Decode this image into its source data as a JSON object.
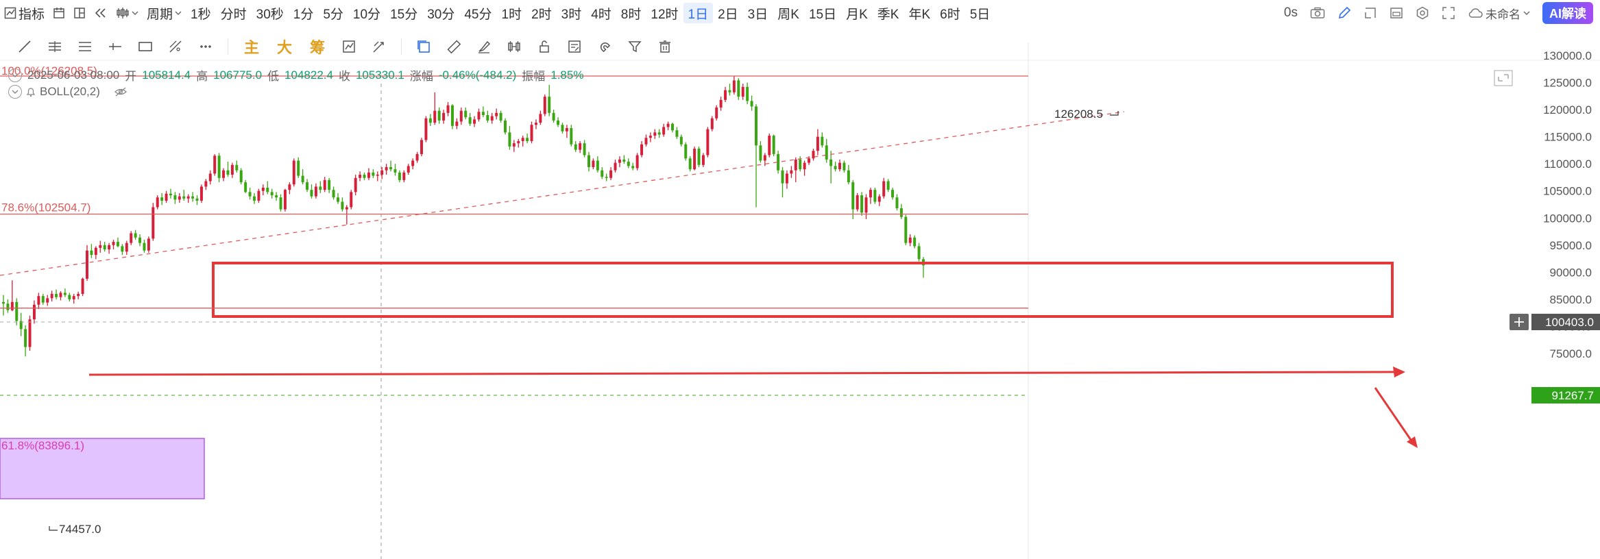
{
  "toolbar": {
    "indicator_label": "指标",
    "period_label": "周期",
    "periods": [
      "1秒",
      "分时",
      "30秒",
      "1分",
      "5分",
      "10分",
      "15分",
      "30分",
      "45分",
      "1时",
      "2时",
      "3时",
      "4时",
      "8时",
      "12时",
      "1日",
      "2日",
      "3日",
      "周K",
      "15日",
      "月K",
      "季K",
      "年K",
      "6时",
      "5日"
    ],
    "active_period": "1日",
    "countdown": "0s",
    "layout_name": "未命名",
    "ai_button": "AI解读"
  },
  "drawbar": {
    "main_label": "主",
    "big_label": "大",
    "chip_label": "筹"
  },
  "ohlc": {
    "date": "2025-06-03 08:00",
    "open_label": "开",
    "open": "105814.4",
    "high_label": "高",
    "high": "106775.0",
    "low_label": "低",
    "low": "104822.4",
    "close_label": "收",
    "close": "105330.1",
    "change_label": "涨幅",
    "change": "-0.46%(-484.2)",
    "amp_label": "振幅",
    "amp": "1.85%"
  },
  "indicator": {
    "name": "BOLL(20,2)"
  },
  "chart_data": {
    "type": "candlestick",
    "y_ticks": [
      "130000.0",
      "125000.0",
      "120000.0",
      "115000.0",
      "110000.0",
      "105000.0",
      "100000.0",
      "95000.0",
      "90000.0",
      "85000.0",
      "80000.0",
      "75000.0"
    ],
    "ylim": [
      73500,
      131500
    ],
    "crosshair_price": "100403.0",
    "last_price": "91267.7",
    "fib_levels": [
      {
        "label": "100.0%(126208.5)",
        "price": 126208.5
      },
      {
        "label": "78.6%(102504.7)",
        "price": 102504.7
      },
      {
        "label": "61.8%(83896.1)",
        "price": 83896.1
      }
    ],
    "support_line_price": 84000,
    "annotations": {
      "high_label": "126208.5",
      "low_label": "74457.0"
    },
    "candles": [
      [
        84500,
        85800,
        82000,
        84200
      ],
      [
        84200,
        85000,
        82500,
        83000
      ],
      [
        83000,
        88500,
        82800,
        84500
      ],
      [
        84500,
        85200,
        80200,
        81000
      ],
      [
        81000,
        82500,
        78200,
        79500
      ],
      [
        79500,
        80200,
        74457,
        76200
      ],
      [
        76200,
        82000,
        75500,
        81300
      ],
      [
        81300,
        84800,
        80500,
        84000
      ],
      [
        84000,
        86200,
        83200,
        85600
      ],
      [
        85600,
        86000,
        84000,
        84400
      ],
      [
        84400,
        85800,
        83800,
        85200
      ],
      [
        85200,
        86600,
        84600,
        86000
      ],
      [
        86000,
        86800,
        85000,
        85400
      ],
      [
        85400,
        86500,
        84800,
        86200
      ],
      [
        86200,
        87000,
        85400,
        85800
      ],
      [
        85800,
        86200,
        84600,
        85000
      ],
      [
        85000,
        86000,
        84200,
        85600
      ],
      [
        85600,
        86400,
        85000,
        86000
      ],
      [
        86000,
        89000,
        85600,
        88800
      ],
      [
        88800,
        95000,
        88400,
        94000
      ],
      [
        94000,
        95200,
        92600,
        93200
      ],
      [
        93200,
        94800,
        92400,
        94500
      ],
      [
        94500,
        95800,
        93600,
        95000
      ],
      [
        95000,
        95600,
        93800,
        94200
      ],
      [
        94200,
        95400,
        93400,
        95000
      ],
      [
        95000,
        96000,
        94200,
        95600
      ],
      [
        95600,
        96400,
        94600,
        94800
      ],
      [
        94800,
        95200,
        93200,
        93800
      ],
      [
        93800,
        95800,
        93200,
        95400
      ],
      [
        95400,
        97600,
        95000,
        97200
      ],
      [
        97200,
        97800,
        96000,
        96400
      ],
      [
        96400,
        97000,
        94800,
        95400
      ],
      [
        95400,
        96000,
        93600,
        94000
      ],
      [
        94000,
        96600,
        93600,
        96200
      ],
      [
        96200,
        102800,
        95800,
        102000
      ],
      [
        102000,
        104200,
        101600,
        103800
      ],
      [
        103800,
        104600,
        102400,
        103200
      ],
      [
        103200,
        105000,
        102800,
        104500
      ],
      [
        104500,
        105400,
        103600,
        104200
      ],
      [
        104200,
        104800,
        102600,
        103400
      ],
      [
        103400,
        104600,
        102800,
        104000
      ],
      [
        104000,
        105200,
        103200,
        103600
      ],
      [
        103600,
        104400,
        102800,
        104000
      ],
      [
        104000,
        104800,
        103000,
        103600
      ],
      [
        103600,
        104200,
        102400,
        103200
      ],
      [
        103200,
        106200,
        102800,
        105800
      ],
      [
        105800,
        107200,
        105200,
        106800
      ],
      [
        106800,
        108800,
        106200,
        108200
      ],
      [
        108200,
        111800,
        107800,
        111500
      ],
      [
        111500,
        112000,
        106600,
        107400
      ],
      [
        107400,
        109200,
        106800,
        108800
      ],
      [
        108800,
        110400,
        107600,
        108000
      ],
      [
        108000,
        110200,
        107400,
        109800
      ],
      [
        109800,
        110600,
        108400,
        108800
      ],
      [
        108800,
        109200,
        106200,
        106600
      ],
      [
        106600,
        107000,
        104600,
        104800
      ],
      [
        104800,
        105600,
        103400,
        104000
      ],
      [
        104000,
        104600,
        102600,
        103200
      ],
      [
        103200,
        105400,
        102800,
        105000
      ],
      [
        105000,
        106200,
        104200,
        105600
      ],
      [
        105600,
        106800,
        104400,
        104800
      ],
      [
        104800,
        105400,
        103600,
        104200
      ],
      [
        104200,
        104800,
        103200,
        103800
      ],
      [
        103800,
        104400,
        101200,
        101600
      ],
      [
        101600,
        105400,
        101200,
        105200
      ],
      [
        105200,
        106600,
        104400,
        106200
      ],
      [
        106200,
        111000,
        105800,
        110600
      ],
      [
        110600,
        111200,
        107400,
        107800
      ],
      [
        107800,
        109000,
        106200,
        106600
      ],
      [
        106600,
        107200,
        104800,
        105200
      ],
      [
        105200,
        106200,
        103600,
        104000
      ],
      [
        104000,
        106400,
        103600,
        105800
      ],
      [
        105800,
        106800,
        104600,
        105200
      ],
      [
        105200,
        107600,
        104800,
        107000
      ],
      [
        107000,
        107400,
        104600,
        105200
      ],
      [
        105200,
        105800,
        103400,
        103800
      ],
      [
        103800,
        104600,
        102600,
        103000
      ],
      [
        103000,
        103800,
        101200,
        101600
      ],
      [
        101600,
        102400,
        98800,
        102000
      ],
      [
        102000,
        105200,
        101600,
        104800
      ],
      [
        104800,
        108000,
        104200,
        107400
      ],
      [
        107400,
        108600,
        106800,
        108000
      ],
      [
        108000,
        108400,
        107000,
        107400
      ],
      [
        107400,
        109200,
        107000,
        108400
      ],
      [
        108400,
        109000,
        107400,
        107800
      ],
      [
        107800,
        108600,
        106800,
        108000
      ],
      [
        108000,
        109400,
        107200,
        108800
      ],
      [
        108800,
        110000,
        108000,
        109400
      ],
      [
        109400,
        110600,
        108600,
        109000
      ],
      [
        109000,
        110000,
        107800,
        108400
      ],
      [
        108400,
        108800,
        106600,
        107000
      ],
      [
        107000,
        108800,
        106600,
        108400
      ],
      [
        108400,
        110000,
        108000,
        109600
      ],
      [
        109600,
        111000,
        109000,
        110600
      ],
      [
        110600,
        112200,
        110200,
        111800
      ],
      [
        111800,
        114800,
        111400,
        114400
      ],
      [
        114400,
        118800,
        114000,
        118400
      ],
      [
        118400,
        119200,
        117000,
        117600
      ],
      [
        117600,
        123200,
        117200,
        119800
      ],
      [
        119800,
        120400,
        117400,
        118000
      ],
      [
        118000,
        120000,
        117400,
        119400
      ],
      [
        119400,
        121400,
        118800,
        120800
      ],
      [
        120800,
        121000,
        116400,
        117000
      ],
      [
        117000,
        118400,
        116400,
        117800
      ],
      [
        117800,
        120400,
        117200,
        119800
      ],
      [
        119800,
        120400,
        118200,
        118600
      ],
      [
        118600,
        119400,
        117000,
        117400
      ],
      [
        117400,
        118800,
        116800,
        118200
      ],
      [
        118200,
        120200,
        117800,
        119600
      ],
      [
        119600,
        120600,
        118600,
        119000
      ],
      [
        119000,
        119800,
        117600,
        118000
      ],
      [
        118000,
        119400,
        117400,
        118800
      ],
      [
        118800,
        120200,
        118200,
        119400
      ],
      [
        119400,
        119800,
        117600,
        118000
      ],
      [
        118000,
        118400,
        115400,
        115800
      ],
      [
        115800,
        117000,
        112600,
        113200
      ],
      [
        113200,
        114400,
        112200,
        113800
      ],
      [
        113800,
        114600,
        113000,
        114200
      ],
      [
        114200,
        115200,
        113200,
        114800
      ],
      [
        114800,
        115600,
        113800,
        114200
      ],
      [
        114200,
        117800,
        113800,
        117200
      ],
      [
        117200,
        118200,
        116400,
        117600
      ],
      [
        117600,
        119800,
        117200,
        119200
      ],
      [
        119200,
        122800,
        118800,
        122400
      ],
      [
        122400,
        124600,
        118800,
        119400
      ],
      [
        119400,
        120000,
        117600,
        118000
      ],
      [
        118000,
        118600,
        116800,
        117200
      ],
      [
        117200,
        117600,
        115600,
        116000
      ],
      [
        116000,
        117200,
        114800,
        116600
      ],
      [
        116600,
        117200,
        113200,
        113600
      ],
      [
        113600,
        114200,
        112200,
        112600
      ],
      [
        112600,
        114200,
        112000,
        113800
      ],
      [
        113800,
        114400,
        111200,
        111600
      ],
      [
        111600,
        112200,
        108600,
        109400
      ],
      [
        109400,
        111000,
        109000,
        110600
      ],
      [
        110600,
        111400,
        108400,
        108800
      ],
      [
        108800,
        109400,
        107200,
        107600
      ],
      [
        107600,
        108200,
        106800,
        107400
      ],
      [
        107400,
        109400,
        107000,
        108800
      ],
      [
        108800,
        110800,
        108400,
        110200
      ],
      [
        110200,
        111400,
        109400,
        110800
      ],
      [
        110800,
        111600,
        110000,
        110400
      ],
      [
        110400,
        111000,
        109200,
        109600
      ],
      [
        109600,
        110200,
        108800,
        109200
      ],
      [
        109200,
        112000,
        108800,
        111600
      ],
      [
        111600,
        114200,
        111200,
        113600
      ],
      [
        113600,
        115400,
        113200,
        114800
      ],
      [
        114800,
        115800,
        114000,
        115200
      ],
      [
        115200,
        116400,
        114600,
        115800
      ],
      [
        115800,
        116400,
        114800,
        115400
      ],
      [
        115400,
        117400,
        115000,
        116800
      ],
      [
        116800,
        117800,
        116200,
        117400
      ],
      [
        117400,
        117600,
        115800,
        116200
      ],
      [
        116200,
        116800,
        114600,
        115000
      ],
      [
        115000,
        115400,
        113200,
        113600
      ],
      [
        113600,
        114000,
        110600,
        111000
      ],
      [
        111000,
        111400,
        108600,
        109000
      ],
      [
        109000,
        113200,
        108800,
        112800
      ],
      [
        112800,
        113200,
        109400,
        109800
      ],
      [
        109800,
        112000,
        109400,
        111600
      ],
      [
        111600,
        116800,
        111200,
        116400
      ],
      [
        116400,
        118800,
        116000,
        118400
      ],
      [
        118400,
        120800,
        118000,
        120400
      ],
      [
        120400,
        122400,
        119800,
        121800
      ],
      [
        121800,
        124200,
        121400,
        123600
      ],
      [
        123600,
        124800,
        122600,
        123200
      ],
      [
        123200,
        126208.5,
        122800,
        125400
      ],
      [
        125400,
        125800,
        121800,
        122400
      ],
      [
        122400,
        124800,
        121800,
        124200
      ],
      [
        124200,
        125000,
        121000,
        121600
      ],
      [
        121600,
        122600,
        119800,
        120600
      ],
      [
        120600,
        121000,
        102000,
        113400
      ],
      [
        113400,
        114200,
        110200,
        110600
      ],
      [
        110600,
        112000,
        109600,
        111600
      ],
      [
        111600,
        115600,
        111200,
        115200
      ],
      [
        115200,
        115400,
        111400,
        111800
      ],
      [
        111800,
        112400,
        108200,
        108800
      ],
      [
        108800,
        109400,
        103800,
        106400
      ],
      [
        106400,
        108800,
        105400,
        108200
      ],
      [
        108200,
        109600,
        107400,
        108800
      ],
      [
        108800,
        111200,
        106600,
        110800
      ],
      [
        110800,
        111400,
        108600,
        109000
      ],
      [
        109000,
        110600,
        107800,
        110200
      ],
      [
        110200,
        111400,
        109800,
        111000
      ],
      [
        111000,
        112800,
        110600,
        112400
      ],
      [
        112400,
        116400,
        111600,
        115000
      ],
      [
        115000,
        115800,
        113000,
        113400
      ],
      [
        113400,
        114600,
        110200,
        110800
      ],
      [
        110800,
        112400,
        106400,
        109600
      ],
      [
        109600,
        110400,
        108600,
        109000
      ],
      [
        109000,
        110800,
        108600,
        110200
      ],
      [
        110200,
        110600,
        108400,
        108800
      ],
      [
        108800,
        109800,
        106200,
        106600
      ],
      [
        106600,
        107000,
        99800,
        101600
      ],
      [
        101600,
        104600,
        101200,
        104200
      ],
      [
        104200,
        104800,
        100400,
        101000
      ],
      [
        101000,
        104400,
        99800,
        103800
      ],
      [
        103800,
        105600,
        102600,
        105200
      ],
      [
        105200,
        105600,
        102600,
        103000
      ],
      [
        103000,
        104400,
        102200,
        104000
      ],
      [
        104000,
        107400,
        103600,
        106800
      ],
      [
        106800,
        107200,
        104800,
        105200
      ],
      [
        105200,
        105600,
        103400,
        103800
      ],
      [
        103800,
        104400,
        101400,
        101800
      ],
      [
        101800,
        102600,
        99800,
        100200
      ],
      [
        100200,
        100600,
        95000,
        95400
      ],
      [
        95400,
        97000,
        94800,
        96400
      ],
      [
        96400,
        96800,
        94400,
        94800
      ],
      [
        94800,
        95400,
        92000,
        92400
      ],
      [
        92400,
        92800,
        89000,
        91267.7
      ]
    ]
  }
}
